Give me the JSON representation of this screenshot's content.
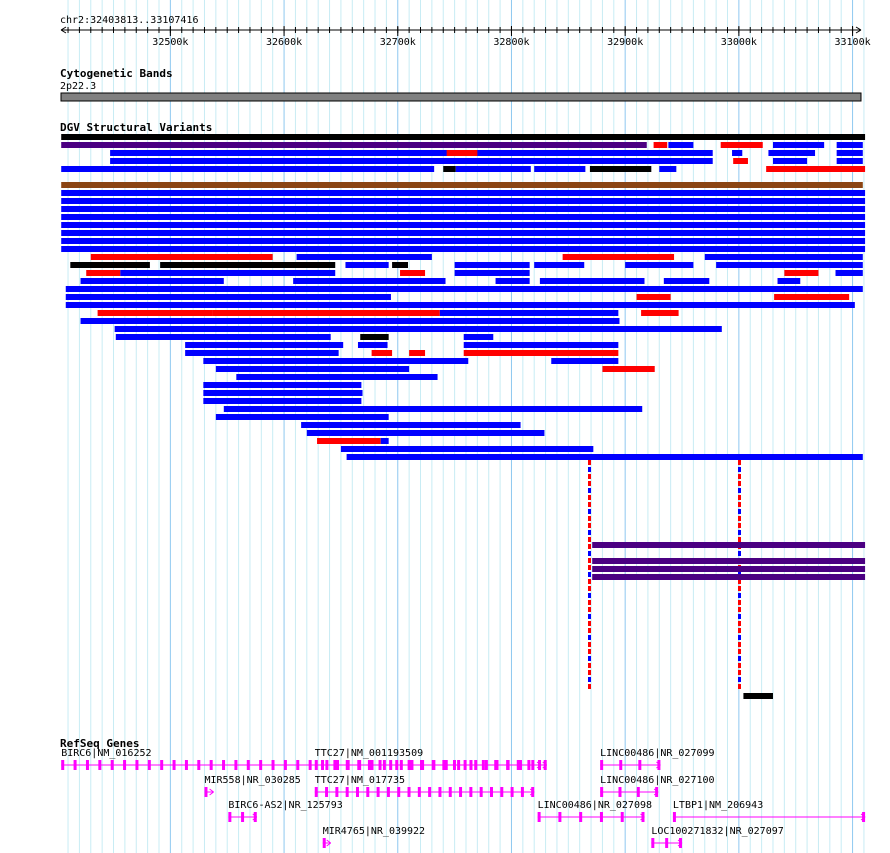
{
  "ruler": {
    "region": "chr2:32403813..33107416",
    "start_kb": 32403.813,
    "end_kb": 33107.416,
    "ticks": [
      "32500k",
      "32600k",
      "32700k",
      "32800k",
      "32900k",
      "33000k",
      "33100k"
    ],
    "tick_values_kb": [
      32500,
      32600,
      32700,
      32800,
      32900,
      33000,
      33100
    ]
  },
  "cyto": {
    "title": "Cytogenetic Bands",
    "band": "2p22.3",
    "color": "#808080"
  },
  "dgv": {
    "title": "DGV Structural Variants",
    "colors": {
      "k": "#000000",
      "p": "#4b0082",
      "b": "#0000ff",
      "r": "#ff0000",
      "n": "#8b4513"
    },
    "rows": [
      [
        [
          32404,
          33111,
          "k"
        ]
      ],
      [
        [
          32404,
          32919,
          "p"
        ],
        [
          32925,
          32937,
          "r"
        ],
        [
          32938,
          32960,
          "b"
        ],
        [
          32984,
          33021,
          "r"
        ],
        [
          33030,
          33075,
          "b"
        ],
        [
          33086,
          33109,
          "b"
        ]
      ],
      [
        [
          32447,
          32895,
          "b"
        ],
        [
          32743,
          32770,
          "r"
        ],
        [
          32818,
          32977,
          "b"
        ],
        [
          32994,
          33003,
          "b"
        ],
        [
          33026,
          33067,
          "b"
        ],
        [
          33086,
          33109,
          "b"
        ]
      ],
      [
        [
          32447,
          32977,
          "b"
        ],
        [
          32995,
          33008,
          "r"
        ],
        [
          33030,
          33060,
          "b"
        ],
        [
          33086,
          33109,
          "b"
        ]
      ],
      [
        [
          32404,
          32732,
          "b"
        ],
        [
          32740,
          32751,
          "k"
        ],
        [
          32751,
          32817,
          "b"
        ],
        [
          32820,
          32865,
          "b"
        ],
        [
          32869,
          32923,
          "k"
        ],
        [
          32930,
          32945,
          "b"
        ],
        [
          33024,
          33111,
          "r"
        ]
      ],
      [],
      [
        [
          32404,
          33109,
          "n"
        ]
      ],
      [
        [
          32404,
          33111,
          "b"
        ]
      ],
      [
        [
          32404,
          33111,
          "b"
        ]
      ],
      [
        [
          32404,
          33111,
          "b"
        ]
      ],
      [
        [
          32404,
          33111,
          "b"
        ]
      ],
      [
        [
          32404,
          33111,
          "b"
        ]
      ],
      [
        [
          32404,
          33111,
          "b"
        ]
      ],
      [
        [
          32404,
          33111,
          "b"
        ]
      ],
      [
        [
          32404,
          33111,
          "b"
        ]
      ],
      [
        [
          32430,
          32590,
          "r"
        ],
        [
          32611,
          32730,
          "b"
        ],
        [
          32845,
          32943,
          "r"
        ],
        [
          32970,
          33109,
          "b"
        ]
      ],
      [
        [
          32412,
          32482,
          "k"
        ],
        [
          32491,
          32645,
          "k"
        ],
        [
          32654,
          32692,
          "b"
        ],
        [
          32695,
          32709,
          "k"
        ],
        [
          32750,
          32816,
          "b"
        ],
        [
          32820,
          32864,
          "b"
        ],
        [
          32900,
          32960,
          "b"
        ],
        [
          32980,
          33109,
          "b"
        ]
      ],
      [
        [
          32426,
          32456,
          "r"
        ],
        [
          32456,
          32645,
          "b"
        ],
        [
          32702,
          32724,
          "r"
        ],
        [
          32750,
          32816,
          "b"
        ],
        [
          33040,
          33070,
          "r"
        ],
        [
          33085,
          33109,
          "b"
        ]
      ],
      [
        [
          32421,
          32547,
          "b"
        ],
        [
          32608,
          32742,
          "b"
        ],
        [
          32786,
          32816,
          "b"
        ],
        [
          32825,
          32917,
          "b"
        ],
        [
          32934,
          32974,
          "b"
        ],
        [
          33034,
          33054,
          "b"
        ]
      ],
      [
        [
          32408,
          33109,
          "b"
        ]
      ],
      [
        [
          32408,
          32694,
          "b"
        ],
        [
          32910,
          32940,
          "r"
        ],
        [
          33031,
          33097,
          "r"
        ]
      ],
      [
        [
          32408,
          33102,
          "b"
        ]
      ],
      [
        [
          32436,
          32537,
          "r"
        ],
        [
          32537,
          32737,
          "r"
        ],
        [
          32737,
          32894,
          "b"
        ],
        [
          32914,
          32947,
          "r"
        ]
      ],
      [
        [
          32421,
          32895,
          "b"
        ]
      ],
      [
        [
          32451,
          32985,
          "b"
        ]
      ],
      [
        [
          32452,
          32641,
          "b"
        ],
        [
          32667,
          32692,
          "k"
        ],
        [
          32758,
          32784,
          "b"
        ]
      ],
      [
        [
          32513,
          32652,
          "b"
        ],
        [
          32665,
          32691,
          "b"
        ],
        [
          32758,
          32894,
          "b"
        ]
      ],
      [
        [
          32513,
          32648,
          "b"
        ],
        [
          32677,
          32695,
          "r"
        ],
        [
          32710,
          32724,
          "r"
        ],
        [
          32758,
          32894,
          "r"
        ]
      ],
      [
        [
          32529,
          32762,
          "b"
        ],
        [
          32835,
          32894,
          "b"
        ]
      ],
      [
        [
          32540,
          32710,
          "b"
        ],
        [
          32880,
          32926,
          "r"
        ]
      ],
      [
        [
          32558,
          32735,
          "b"
        ]
      ],
      [
        [
          32529,
          32668,
          "b"
        ]
      ],
      [
        [
          32529,
          32669,
          "b"
        ]
      ],
      [
        [
          32529,
          32668,
          "b"
        ]
      ],
      [
        [
          32547,
          32915,
          "b"
        ]
      ],
      [
        [
          32540,
          32692,
          "b"
        ]
      ],
      [
        [
          32615,
          32808,
          "b"
        ]
      ],
      [
        [
          32620,
          32829,
          "b"
        ]
      ],
      [
        [
          32629,
          32685,
          "r"
        ],
        [
          32685,
          32692,
          "b"
        ]
      ],
      [
        [
          32650,
          32872,
          "b"
        ]
      ],
      [
        [
          32655,
          33109,
          "b"
        ]
      ]
    ],
    "lower_rows": [
      [
        [
          32871,
          33111,
          "p"
        ]
      ],
      [],
      [
        [
          32871,
          33111,
          "p"
        ]
      ],
      [
        [
          32871,
          33111,
          "p"
        ]
      ],
      [
        [
          32871,
          33111,
          "p"
        ]
      ]
    ],
    "small_bar": {
      "start_kb": 33004,
      "end_kb": 33030,
      "color": "#000000"
    }
  },
  "refseq": {
    "title": "RefSeq Genes",
    "color": "#ff00ff",
    "genes": [
      {
        "label": "BIRC6|NM_016252",
        "start_kb": 32404,
        "end_kb": 32831,
        "row": 0,
        "exons": 40
      },
      {
        "label": "TTC27|NM_001193509",
        "start_kb": 32627,
        "end_kb": 32826,
        "row": 0,
        "exons": 22,
        "label_only_offset": true
      },
      {
        "label": "LINC00486|NR_027099",
        "start_kb": 32878,
        "end_kb": 32931,
        "row": 0,
        "exons": 4
      },
      {
        "label": "MIR558|NR_030285",
        "start_kb": 32530,
        "end_kb": 32538,
        "row": 1,
        "exons": 1
      },
      {
        "label": "TTC27|NM_017735",
        "start_kb": 32627,
        "end_kb": 32820,
        "row": 1,
        "exons": 22
      },
      {
        "label": "LINC00486|NR_027100",
        "start_kb": 32878,
        "end_kb": 32929,
        "row": 1,
        "exons": 4
      },
      {
        "label": "BIRC6-AS2|NR_125793",
        "start_kb": 32551,
        "end_kb": 32576,
        "row": 2,
        "exons": 3
      },
      {
        "label": "LINC00486|NR_027098",
        "start_kb": 32823,
        "end_kb": 32917,
        "row": 2,
        "exons": 6
      },
      {
        "label": "LTBP1|NM_206943",
        "start_kb": 32942,
        "end_kb": 33111,
        "row": 2,
        "exons": 2
      },
      {
        "label": "MIR4765|NR_039922",
        "start_kb": 32634,
        "end_kb": 32641,
        "row": 3,
        "exons": 1
      },
      {
        "label": "LOC100271832|NR_027097",
        "start_kb": 32923,
        "end_kb": 32950,
        "row": 3,
        "exons": 3
      }
    ]
  }
}
